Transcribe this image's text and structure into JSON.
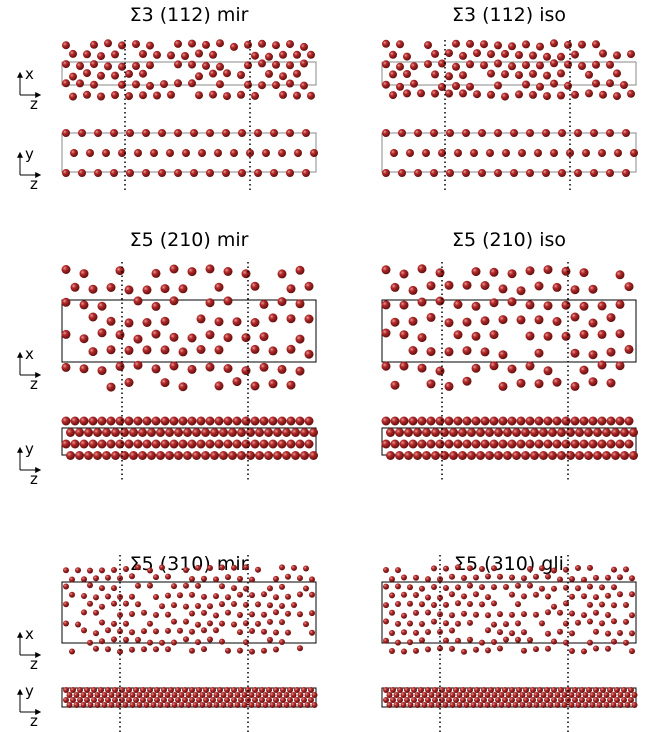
{
  "rows": [
    {
      "panels": [
        {
          "title": "Σ3 (112) mir"
        },
        {
          "title": "Σ3 (112) iso"
        }
      ],
      "top_axes": {
        "vertical": "x",
        "horizontal": "z"
      },
      "bottom_axes": {
        "vertical": "y",
        "horizontal": "z"
      }
    },
    {
      "panels": [
        {
          "title": "Σ5 (210) mir"
        },
        {
          "title": "Σ5 (210) iso"
        }
      ],
      "top_axes": {
        "vertical": "x",
        "horizontal": "z"
      },
      "bottom_axes": {
        "vertical": "y",
        "horizontal": "z"
      }
    },
    {
      "panels": [
        {
          "title": "Σ5 (310) mir"
        },
        {
          "title": "Σ5 (310) gli"
        }
      ],
      "top_axes": {
        "vertical": "x",
        "horizontal": "z"
      },
      "bottom_axes": {
        "vertical": "y",
        "horizontal": "z"
      }
    }
  ]
}
